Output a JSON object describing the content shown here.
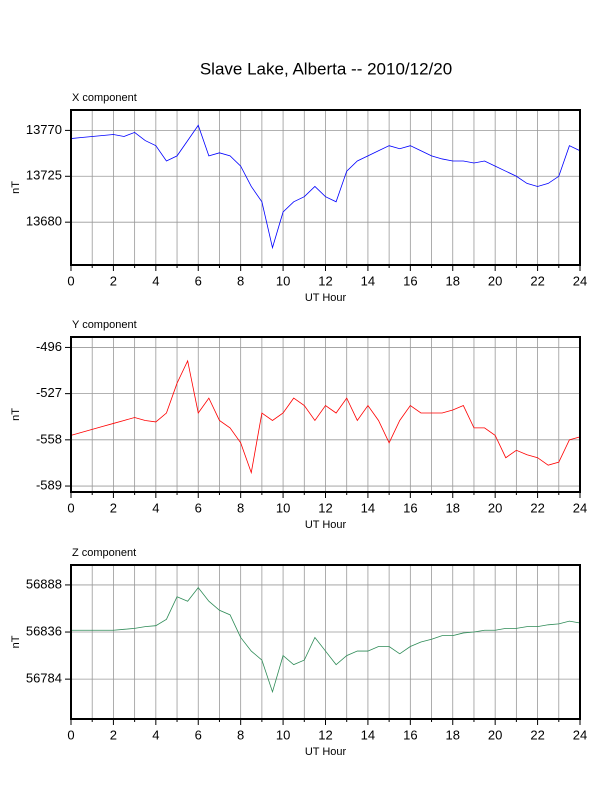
{
  "title": "Slave Lake, Alberta -- 2010/12/20",
  "chart_data": [
    {
      "type": "line",
      "title": "X component",
      "xlabel": "UT Hour",
      "ylabel": "nT",
      "xlim": [
        0,
        24
      ],
      "xticks": [
        0,
        2,
        4,
        6,
        8,
        10,
        12,
        14,
        16,
        18,
        20,
        22,
        24
      ],
      "minor_xticks": [
        1,
        3,
        5,
        7,
        9,
        11,
        13,
        15,
        17,
        19,
        21,
        23
      ],
      "ylim": [
        13638,
        13790
      ],
      "yticks": [
        13680,
        13725,
        13770
      ],
      "grid": true,
      "series": [
        {
          "name": "X",
          "color": "#0000ff",
          "x": [
            0,
            0.5,
            1,
            1.5,
            2,
            2.5,
            3,
            3.5,
            4,
            4.5,
            5,
            5.5,
            6,
            6.5,
            7,
            7.5,
            8,
            8.5,
            9,
            9.5,
            10,
            10.5,
            11,
            11.5,
            12,
            12.5,
            13,
            13.5,
            14,
            14.5,
            15,
            15.5,
            16,
            16.5,
            17,
            17.5,
            18,
            18.5,
            19,
            19.5,
            20,
            20.5,
            21,
            21.5,
            22,
            22.5,
            23,
            23.5,
            24
          ],
          "values": [
            13762,
            13763,
            13764,
            13765,
            13766,
            13764,
            13768,
            13760,
            13755,
            13740,
            13745,
            13760,
            13775,
            13745,
            13748,
            13745,
            13735,
            13715,
            13700,
            13655,
            13690,
            13700,
            13705,
            13715,
            13705,
            13700,
            13730,
            13740,
            13745,
            13750,
            13755,
            13752,
            13755,
            13750,
            13745,
            13742,
            13740,
            13740,
            13738,
            13740,
            13735,
            13730,
            13725,
            13718,
            13715,
            13718,
            13725,
            13755,
            13750
          ]
        }
      ]
    },
    {
      "type": "line",
      "title": "Y component",
      "xlabel": "UT Hour",
      "ylabel": "nT",
      "xlim": [
        0,
        24
      ],
      "xticks": [
        0,
        2,
        4,
        6,
        8,
        10,
        12,
        14,
        16,
        18,
        20,
        22,
        24
      ],
      "minor_xticks": [
        1,
        3,
        5,
        7,
        9,
        11,
        13,
        15,
        17,
        19,
        21,
        23
      ],
      "ylim": [
        -593,
        -489
      ],
      "yticks": [
        -589,
        -558,
        -527,
        -496
      ],
      "grid": true,
      "series": [
        {
          "name": "Y",
          "color": "#ff0000",
          "x": [
            0,
            0.5,
            1,
            1.5,
            2,
            2.5,
            3,
            3.5,
            4,
            4.5,
            5,
            5.5,
            6,
            6.5,
            7,
            7.5,
            8,
            8.5,
            9,
            9.5,
            10,
            10.5,
            11,
            11.5,
            12,
            12.5,
            13,
            13.5,
            14,
            14.5,
            15,
            15.5,
            16,
            16.5,
            17,
            17.5,
            18,
            18.5,
            19,
            19.5,
            20,
            20.5,
            21,
            21.5,
            22,
            22.5,
            23,
            23.5,
            24
          ],
          "values": [
            -555,
            -553,
            -551,
            -549,
            -547,
            -545,
            -543,
            -545,
            -546,
            -540,
            -520,
            -505,
            -540,
            -530,
            -545,
            -550,
            -560,
            -580,
            -540,
            -545,
            -540,
            -530,
            -535,
            -545,
            -535,
            -540,
            -530,
            -545,
            -535,
            -545,
            -560,
            -545,
            -535,
            -540,
            -540,
            -540,
            -538,
            -535,
            -550,
            -550,
            -555,
            -570,
            -565,
            -568,
            -570,
            -575,
            -573,
            -558,
            -556
          ]
        }
      ]
    },
    {
      "type": "line",
      "title": "Z component",
      "xlabel": "UT Hour",
      "ylabel": "nT",
      "xlim": [
        0,
        24
      ],
      "xticks": [
        0,
        2,
        4,
        6,
        8,
        10,
        12,
        14,
        16,
        18,
        20,
        22,
        24
      ],
      "minor_xticks": [
        1,
        3,
        5,
        7,
        9,
        11,
        13,
        15,
        17,
        19,
        21,
        23
      ],
      "ylim": [
        56740,
        56910
      ],
      "yticks": [
        56784,
        56836,
        56888
      ],
      "grid": true,
      "series": [
        {
          "name": "Z",
          "color": "#2e8b57",
          "x": [
            0,
            0.5,
            1,
            1.5,
            2,
            2.5,
            3,
            3.5,
            4,
            4.5,
            5,
            5.5,
            6,
            6.5,
            7,
            7.5,
            8,
            8.5,
            9,
            9.5,
            10,
            10.5,
            11,
            11.5,
            12,
            12.5,
            13,
            13.5,
            14,
            14.5,
            15,
            15.5,
            16,
            16.5,
            17,
            17.5,
            18,
            18.5,
            19,
            19.5,
            20,
            20.5,
            21,
            21.5,
            22,
            22.5,
            23,
            23.5,
            24
          ],
          "values": [
            56838,
            56838,
            56838,
            56838,
            56838,
            56839,
            56840,
            56842,
            56843,
            56850,
            56875,
            56870,
            56885,
            56870,
            56860,
            56855,
            56830,
            56815,
            56805,
            56770,
            56810,
            56800,
            56805,
            56830,
            56815,
            56800,
            56810,
            56815,
            56815,
            56820,
            56820,
            56812,
            56820,
            56825,
            56828,
            56832,
            56832,
            56835,
            56836,
            56838,
            56838,
            56840,
            56840,
            56842,
            56842,
            56844,
            56845,
            56848,
            56846
          ]
        }
      ]
    }
  ]
}
